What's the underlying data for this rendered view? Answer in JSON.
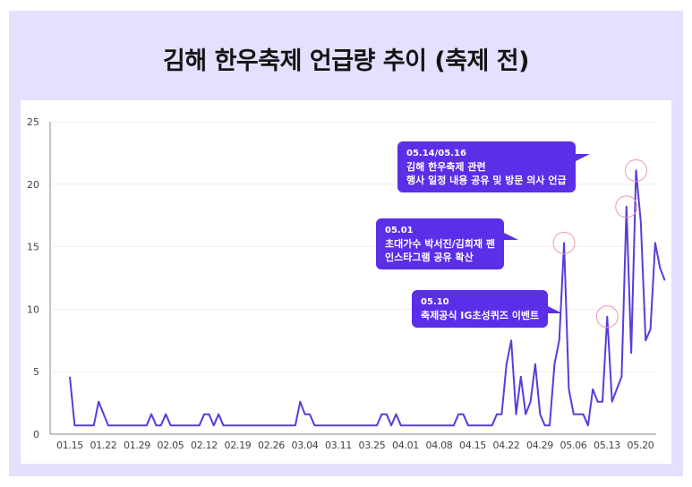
{
  "title": "김해 한우축제 언급량 추이 (축제 전)",
  "colors": {
    "frame_bg": "#E6DFFD",
    "panel_bg": "#FFFFFF",
    "line": "#5B3BDB",
    "callout_bg": "#5B2EE8",
    "highlight_circle": "#E89AA8",
    "grid": "#EEEEEE",
    "axis": "#888888"
  },
  "callouts": [
    {
      "id": "c1",
      "date": "05.14/05.16",
      "lines": [
        "김해 한우축제 관련",
        "행사 일정 내용 공유 및 방문 의사 언급"
      ]
    },
    {
      "id": "c2",
      "date": "05.01",
      "lines": [
        "초대가수 박서진/김희재 팬",
        "인스타그램 공유 확산"
      ]
    },
    {
      "id": "c3",
      "date": "05.10",
      "lines": [
        "축제공식 IG초성퀴즈 이벤트"
      ]
    }
  ],
  "chart_data": {
    "type": "line",
    "title": "김해 한우축제 언급량 추이 (축제 전)",
    "xlabel": "",
    "ylabel": "",
    "ylim": [
      0,
      25
    ],
    "yticks": [
      0,
      5,
      10,
      15,
      20,
      25
    ],
    "grid": true,
    "legend": "none",
    "categories": [
      "01.15",
      "01.22",
      "01.29",
      "02.05",
      "02.12",
      "02.19",
      "02.26",
      "03.04",
      "03.11",
      "03.25",
      "04.01",
      "04.08",
      "04.15",
      "04.22",
      "04.29",
      "05.06",
      "05.13",
      "05.20"
    ],
    "series": [
      {
        "name": "언급량",
        "points": [
          [
            0,
            4.6
          ],
          [
            1,
            0.7
          ],
          [
            5,
            0.7
          ],
          [
            6,
            2.6
          ],
          [
            8,
            0.7
          ],
          [
            16,
            0.7
          ],
          [
            17,
            1.6
          ],
          [
            18,
            0.7
          ],
          [
            19,
            0.7
          ],
          [
            20,
            1.6
          ],
          [
            21,
            0.7
          ],
          [
            27,
            0.7
          ],
          [
            28,
            1.6
          ],
          [
            29,
            1.6
          ],
          [
            30,
            0.7
          ],
          [
            31,
            1.6
          ],
          [
            32,
            0.7
          ],
          [
            47,
            0.7
          ],
          [
            48,
            2.6
          ],
          [
            49,
            1.6
          ],
          [
            50,
            1.6
          ],
          [
            51,
            0.7
          ],
          [
            64,
            0.7
          ],
          [
            65,
            1.6
          ],
          [
            66,
            1.6
          ],
          [
            67,
            0.7
          ],
          [
            68,
            1.6
          ],
          [
            69,
            0.7
          ],
          [
            80,
            0.7
          ],
          [
            81,
            1.6
          ],
          [
            82,
            1.6
          ],
          [
            83,
            0.7
          ],
          [
            88,
            0.7
          ],
          [
            89,
            1.6
          ],
          [
            90,
            1.6
          ],
          [
            91,
            5.6
          ],
          [
            92,
            7.5
          ],
          [
            93,
            1.6
          ],
          [
            94,
            4.6
          ],
          [
            95,
            1.6
          ],
          [
            96,
            2.6
          ],
          [
            97,
            5.6
          ],
          [
            98,
            1.6
          ],
          [
            99,
            0.7
          ],
          [
            100,
            0.7
          ],
          [
            101,
            5.6
          ],
          [
            102,
            7.5
          ],
          [
            103,
            15.3
          ],
          [
            104,
            3.6
          ],
          [
            105,
            1.6
          ],
          [
            106,
            1.6
          ],
          [
            107,
            1.6
          ],
          [
            108,
            0.7
          ],
          [
            109,
            3.6
          ],
          [
            110,
            2.6
          ],
          [
            111,
            2.6
          ],
          [
            112,
            9.4
          ],
          [
            113,
            2.6
          ],
          [
            114,
            3.6
          ],
          [
            115,
            4.6
          ],
          [
            116,
            18.2
          ],
          [
            117,
            6.5
          ],
          [
            118,
            21.1
          ],
          [
            119,
            17.0
          ],
          [
            120,
            7.5
          ],
          [
            121,
            8.4
          ],
          [
            122,
            15.3
          ],
          [
            123,
            13.3
          ],
          [
            124,
            12.3
          ]
        ]
      }
    ],
    "highlighted_points": [
      {
        "date": "05.01",
        "value": 15.3
      },
      {
        "date": "05.10",
        "value": 9.4
      },
      {
        "date": "05.14",
        "value": 18.2
      },
      {
        "date": "05.16",
        "value": 21.1
      }
    ]
  }
}
